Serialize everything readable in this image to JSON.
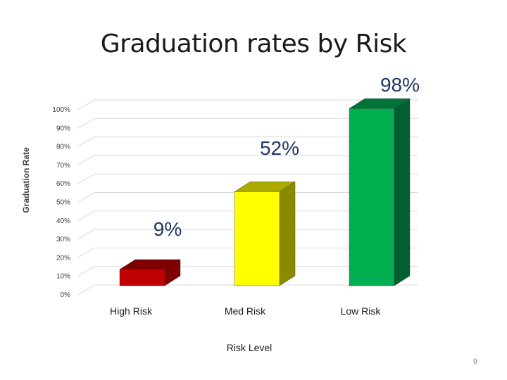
{
  "slide": {
    "page_number": "9"
  },
  "chart_data": {
    "type": "bar",
    "title": "Graduation rates by Risk",
    "xlabel": "Risk Level",
    "ylabel": "Graduation Rate",
    "categories": [
      "High Risk",
      "Med Risk",
      "Low Risk"
    ],
    "values": [
      9,
      52,
      98
    ],
    "data_labels": [
      "9%",
      "52%",
      "98%"
    ],
    "ylim": [
      0,
      100
    ],
    "y_ticks": [
      0,
      10,
      20,
      30,
      40,
      50,
      60,
      70,
      80,
      90,
      100
    ],
    "y_tick_labels": [
      "0%",
      "10%",
      "20%",
      "30%",
      "40%",
      "50%",
      "60%",
      "70%",
      "80%",
      "90%",
      "100%"
    ],
    "grid": true,
    "legend": "none",
    "style": "3d-bar",
    "colors": {
      "bar_fronts": [
        "#c00000",
        "#ffff00",
        "#00b050"
      ],
      "bar_tops": [
        "#7f0000",
        "#aaaa00",
        "#00753a"
      ],
      "bar_sides": [
        "#800000",
        "#8a8a00",
        "#006030"
      ],
      "data_label": "#1f3864",
      "gridline": "#d9d9d9",
      "axis_text": "#404040"
    }
  }
}
